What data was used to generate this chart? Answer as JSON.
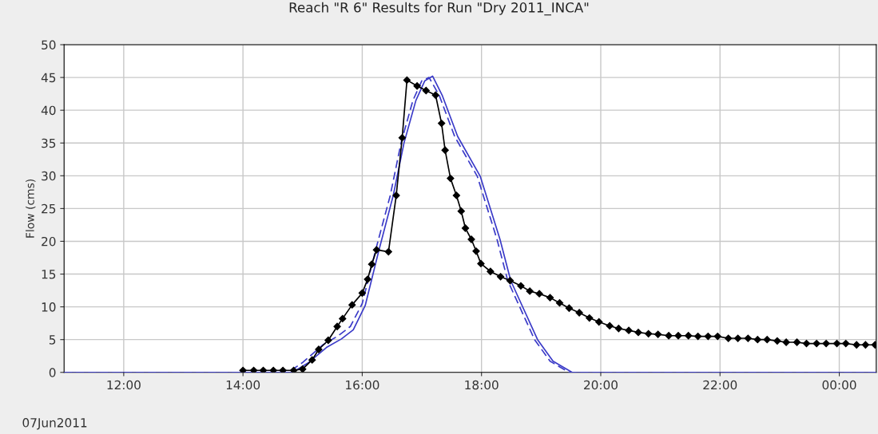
{
  "chart_data": {
    "type": "line",
    "title": "Reach \"R 6\" Results for Run \"Dry 2011_INCA\"",
    "ylabel": "Flow (cms)",
    "annotations": [
      "07Jun2011"
    ],
    "xlim": [
      11,
      24.62
    ],
    "ylim": [
      0,
      50
    ],
    "xticks": [
      {
        "value": 12,
        "label": "12:00"
      },
      {
        "value": 14,
        "label": "14:00"
      },
      {
        "value": 16,
        "label": "16:00"
      },
      {
        "value": 18,
        "label": "18:00"
      },
      {
        "value": 20,
        "label": "20:00"
      },
      {
        "value": 22,
        "label": "22:00"
      },
      {
        "value": 24,
        "label": "00:00"
      }
    ],
    "yticks": [
      0,
      5,
      10,
      15,
      20,
      25,
      30,
      35,
      40,
      45,
      50
    ],
    "grid": true,
    "series": [
      {
        "color": "#3a3ac8",
        "marker": "none",
        "line_style": "solid",
        "x": [
          11,
          14.83,
          15.1,
          15.4,
          15.65,
          15.85,
          16.05,
          16.27,
          16.52,
          16.7,
          16.9,
          17.05,
          17.18,
          17.34,
          17.6,
          17.98,
          18.31,
          18.49,
          18.94,
          19.2,
          19.52,
          24.62
        ],
        "values": [
          0,
          0,
          1.5,
          3.8,
          5.1,
          6.5,
          10.2,
          18.3,
          27,
          35,
          41.5,
          44.5,
          45.2,
          42.3,
          36,
          29.9,
          20.3,
          14,
          5,
          1.7,
          0,
          0
        ]
      },
      {
        "color": "#3a3ac8",
        "marker": "none",
        "line_style": "dashed",
        "x": [
          11,
          14.76,
          15.0,
          15.34,
          15.6,
          15.8,
          16.0,
          16.22,
          16.47,
          16.65,
          16.85,
          17.0,
          17.12,
          17.29,
          17.55,
          17.93,
          18.26,
          18.44,
          18.89,
          19.15,
          19.47,
          24.62
        ],
        "values": [
          0,
          0,
          1.5,
          4.2,
          5.6,
          7,
          10.5,
          18.5,
          27,
          35,
          41.5,
          44.5,
          45,
          42.3,
          36,
          29.9,
          20.3,
          14,
          5,
          1.7,
          0,
          0
        ]
      },
      {
        "color": "#000000",
        "marker": "diamond",
        "line_style": "solid",
        "x": [
          14.0,
          14.18,
          14.34,
          14.51,
          14.67,
          14.85,
          15.0,
          15.16,
          15.27,
          15.43,
          15.58,
          15.67,
          15.83,
          16.0,
          16.09,
          16.16,
          16.24,
          16.44,
          16.57,
          16.67,
          16.75,
          16.92,
          17.07,
          17.23,
          17.33,
          17.39,
          17.48,
          17.58,
          17.66,
          17.73,
          17.83,
          17.91,
          17.99,
          18.15,
          18.32,
          18.48,
          18.66,
          18.81,
          18.97,
          19.15,
          19.31,
          19.47,
          19.64,
          19.81,
          19.97,
          20.15,
          20.3,
          20.47,
          20.63,
          20.8,
          20.96,
          21.14,
          21.3,
          21.47,
          21.63,
          21.8,
          21.96,
          22.14,
          22.3,
          22.47,
          22.63,
          22.79,
          22.96,
          23.11,
          23.29,
          23.45,
          23.62,
          23.78,
          23.96,
          24.11,
          24.29,
          24.44,
          24.6
        ],
        "values": [
          0.3,
          0.3,
          0.3,
          0.3,
          0.3,
          0.3,
          0.5,
          1.9,
          3.5,
          4.9,
          7.0,
          8.2,
          10.3,
          12.1,
          14.2,
          16.5,
          18.7,
          18.4,
          27.0,
          35.8,
          44.6,
          43.7,
          43.0,
          42.3,
          38.0,
          33.9,
          29.6,
          27.0,
          24.6,
          22.0,
          20.3,
          18.5,
          16.6,
          15.4,
          14.6,
          14.0,
          13.2,
          12.4,
          12.0,
          11.4,
          10.6,
          9.8,
          9.1,
          8.3,
          7.7,
          7.1,
          6.7,
          6.4,
          6.1,
          5.9,
          5.8,
          5.6,
          5.6,
          5.6,
          5.5,
          5.5,
          5.5,
          5.2,
          5.2,
          5.2,
          5.0,
          5.0,
          4.8,
          4.6,
          4.6,
          4.4,
          4.4,
          4.4,
          4.4,
          4.4,
          4.2,
          4.2,
          4.2
        ]
      }
    ]
  }
}
